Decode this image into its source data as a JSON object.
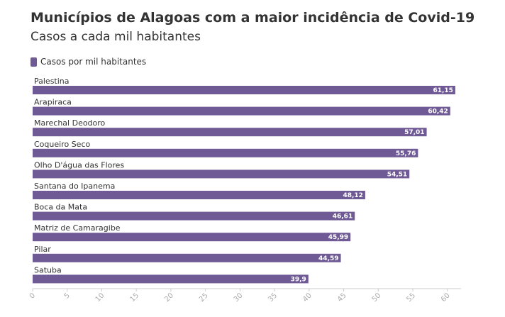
{
  "title": "Municípios de Alagoas com a maior incidência de Covid-19",
  "subtitle": "Casos a cada mil habitantes",
  "colors": {
    "bar": "#6f5a96",
    "axis": "#cccccc"
  },
  "chart_data": {
    "type": "bar",
    "orientation": "horizontal",
    "title": "Municípios de Alagoas com a maior incidência de Covid-19",
    "subtitle": "Casos a cada mil habitantes",
    "categories": [
      "Palestina",
      "Arapiraca",
      "Marechal Deodoro",
      "Coqueiro Seco",
      "Olho D'água das Flores",
      "Santana do Ipanema",
      "Boca da Mata",
      "Matriz de Camaragibe",
      "Pilar",
      "Satuba"
    ],
    "series": [
      {
        "name": "Casos por mil habitantes",
        "values": [
          61.15,
          60.42,
          57.01,
          55.76,
          54.51,
          48.12,
          46.61,
          45.99,
          44.59,
          39.9
        ]
      }
    ],
    "value_labels": [
      "61,15",
      "60,42",
      "57,01",
      "55,76",
      "54,51",
      "48,12",
      "46,61",
      "45,99",
      "44,59",
      "39,9"
    ],
    "xlim": [
      0,
      62
    ],
    "xticks": [
      0,
      5,
      10,
      15,
      20,
      25,
      30,
      35,
      40,
      45,
      50,
      55,
      60
    ],
    "legend": "top-left",
    "grid": false
  }
}
